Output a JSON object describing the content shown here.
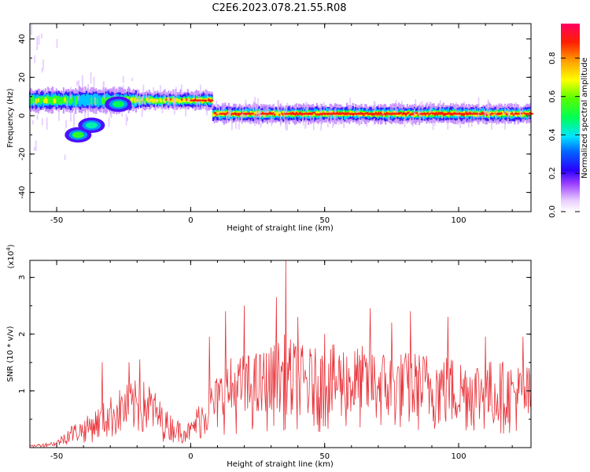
{
  "chart_data": [
    {
      "type": "heatmap",
      "title": "C2E6.2023.078.21.55.R08",
      "xlabel": "Height of straight line (km)",
      "ylabel": "Frequency (Hz)",
      "xlim": [
        -60,
        127
      ],
      "ylim": [
        -50,
        48
      ],
      "xticks": [
        -50,
        0,
        50,
        100
      ],
      "yticks": [
        -40,
        -20,
        0,
        20,
        40
      ],
      "colorbar": {
        "label": "Normalized spectral amplitude",
        "range": [
          0,
          0.98
        ],
        "ticks": [
          0.0,
          0.2,
          0.4,
          0.6,
          0.8
        ]
      },
      "ridge": {
        "x": [
          -59,
          -55,
          -50,
          -46,
          -43,
          -40,
          -37,
          -34,
          -30,
          -27,
          -24,
          -21,
          -18,
          -15,
          -12,
          -8,
          -4,
          0,
          5,
          10,
          15,
          20,
          25,
          30,
          35,
          40,
          45,
          50,
          60,
          70,
          80,
          90,
          100,
          110,
          120,
          127
        ],
        "y": [
          8,
          8,
          7,
          5,
          2,
          -2,
          -4,
          -2,
          0,
          -2,
          -3,
          -3,
          0,
          1,
          -1,
          -2,
          -1,
          0,
          0,
          0,
          0,
          0,
          0,
          1,
          1,
          1,
          1,
          1,
          1,
          1,
          1,
          1,
          1,
          1,
          1,
          1
        ],
        "amp": [
          0.55,
          0.62,
          0.62,
          0.55,
          0.5,
          0.4,
          0.45,
          0.45,
          0.55,
          0.55,
          0.6,
          0.62,
          0.7,
          0.65,
          0.6,
          0.72,
          0.72,
          0.72,
          0.78,
          0.82,
          0.88,
          0.9,
          0.85,
          0.78,
          0.8,
          0.85,
          0.9,
          0.92,
          0.95,
          0.98,
          0.92,
          0.88,
          0.85,
          0.82,
          0.8,
          0.75
        ]
      },
      "features": [
        {
          "x": -42,
          "y": -10,
          "amp": 0.55
        },
        {
          "x": -27,
          "y": 6,
          "amp": 0.5
        },
        {
          "x": -37,
          "y": -5,
          "amp": 0.45
        }
      ]
    },
    {
      "type": "line",
      "xlabel": "Height of straight line (km)",
      "ylabel": "SNR (10 * v/v)",
      "yscale_label": "(x10^4)",
      "xlim": [
        -60,
        127
      ],
      "ylim": [
        0,
        3.3
      ],
      "xticks": [
        -50,
        0,
        50,
        100
      ],
      "yticks": [
        1,
        2,
        3
      ],
      "series": [
        {
          "color": "#e8333a",
          "envelope_x": [
            -60,
            -50,
            -45,
            -40,
            -35,
            -30,
            -25,
            -20,
            -15,
            -10,
            -5,
            0,
            3,
            6,
            10,
            15,
            20,
            25,
            30,
            35,
            38,
            42,
            47,
            52,
            56,
            60,
            65,
            70,
            75,
            80,
            85,
            90,
            95,
            100,
            105,
            110,
            115,
            120,
            127
          ],
          "envelope_y": [
            0.04,
            0.12,
            0.4,
            0.5,
            0.7,
            0.9,
            1.1,
            1.2,
            1.15,
            0.7,
            0.5,
            0.45,
            0.8,
            1.0,
            1.3,
            1.6,
            1.65,
            1.7,
            1.8,
            2.0,
            1.9,
            1.8,
            1.75,
            1.8,
            1.85,
            1.8,
            1.8,
            1.75,
            1.7,
            1.7,
            1.7,
            1.7,
            1.65,
            1.6,
            1.6,
            1.55,
            1.55,
            1.5,
            1.45
          ],
          "spikes": [
            {
              "x": 35.5,
              "y": 3.3
            },
            {
              "x": 32,
              "y": 2.65
            },
            {
              "x": 13,
              "y": 2.4
            },
            {
              "x": 20,
              "y": 2.5
            },
            {
              "x": 40,
              "y": 2.3
            },
            {
              "x": 67,
              "y": 2.45
            },
            {
              "x": 82,
              "y": 2.4
            },
            {
              "x": 96,
              "y": 2.3
            },
            {
              "x": -33,
              "y": 1.5
            },
            {
              "x": -23,
              "y": 1.5
            },
            {
              "x": -19,
              "y": 1.55
            },
            {
              "x": 7,
              "y": 1.95
            },
            {
              "x": 50,
              "y": 2.0
            },
            {
              "x": 75,
              "y": 2.2
            },
            {
              "x": 110,
              "y": 1.95
            },
            {
              "x": 124,
              "y": 1.95
            }
          ]
        }
      ]
    }
  ]
}
